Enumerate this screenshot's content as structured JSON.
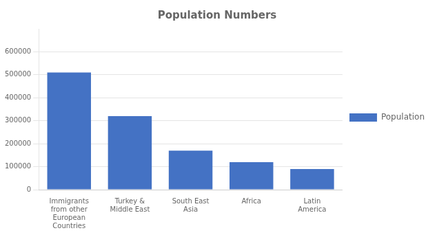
{
  "chart_data": {
    "type": "bar",
    "title": "Population Numbers",
    "categories": [
      "Immigrants\nfrom other\nEuropean\nCountries",
      "Turkey &\nMiddle East",
      "South East\nAsia",
      "Africa",
      "Latin\nAmerica"
    ],
    "series": [
      {
        "name": "Population",
        "color": "#4472C4",
        "values": [
          510000,
          320000,
          170000,
          120000,
          90000
        ]
      }
    ],
    "ylim": [
      0,
      700000
    ],
    "yticks": [
      0,
      100000,
      200000,
      300000,
      400000,
      500000,
      600000
    ],
    "grid": true,
    "legend": "right"
  }
}
